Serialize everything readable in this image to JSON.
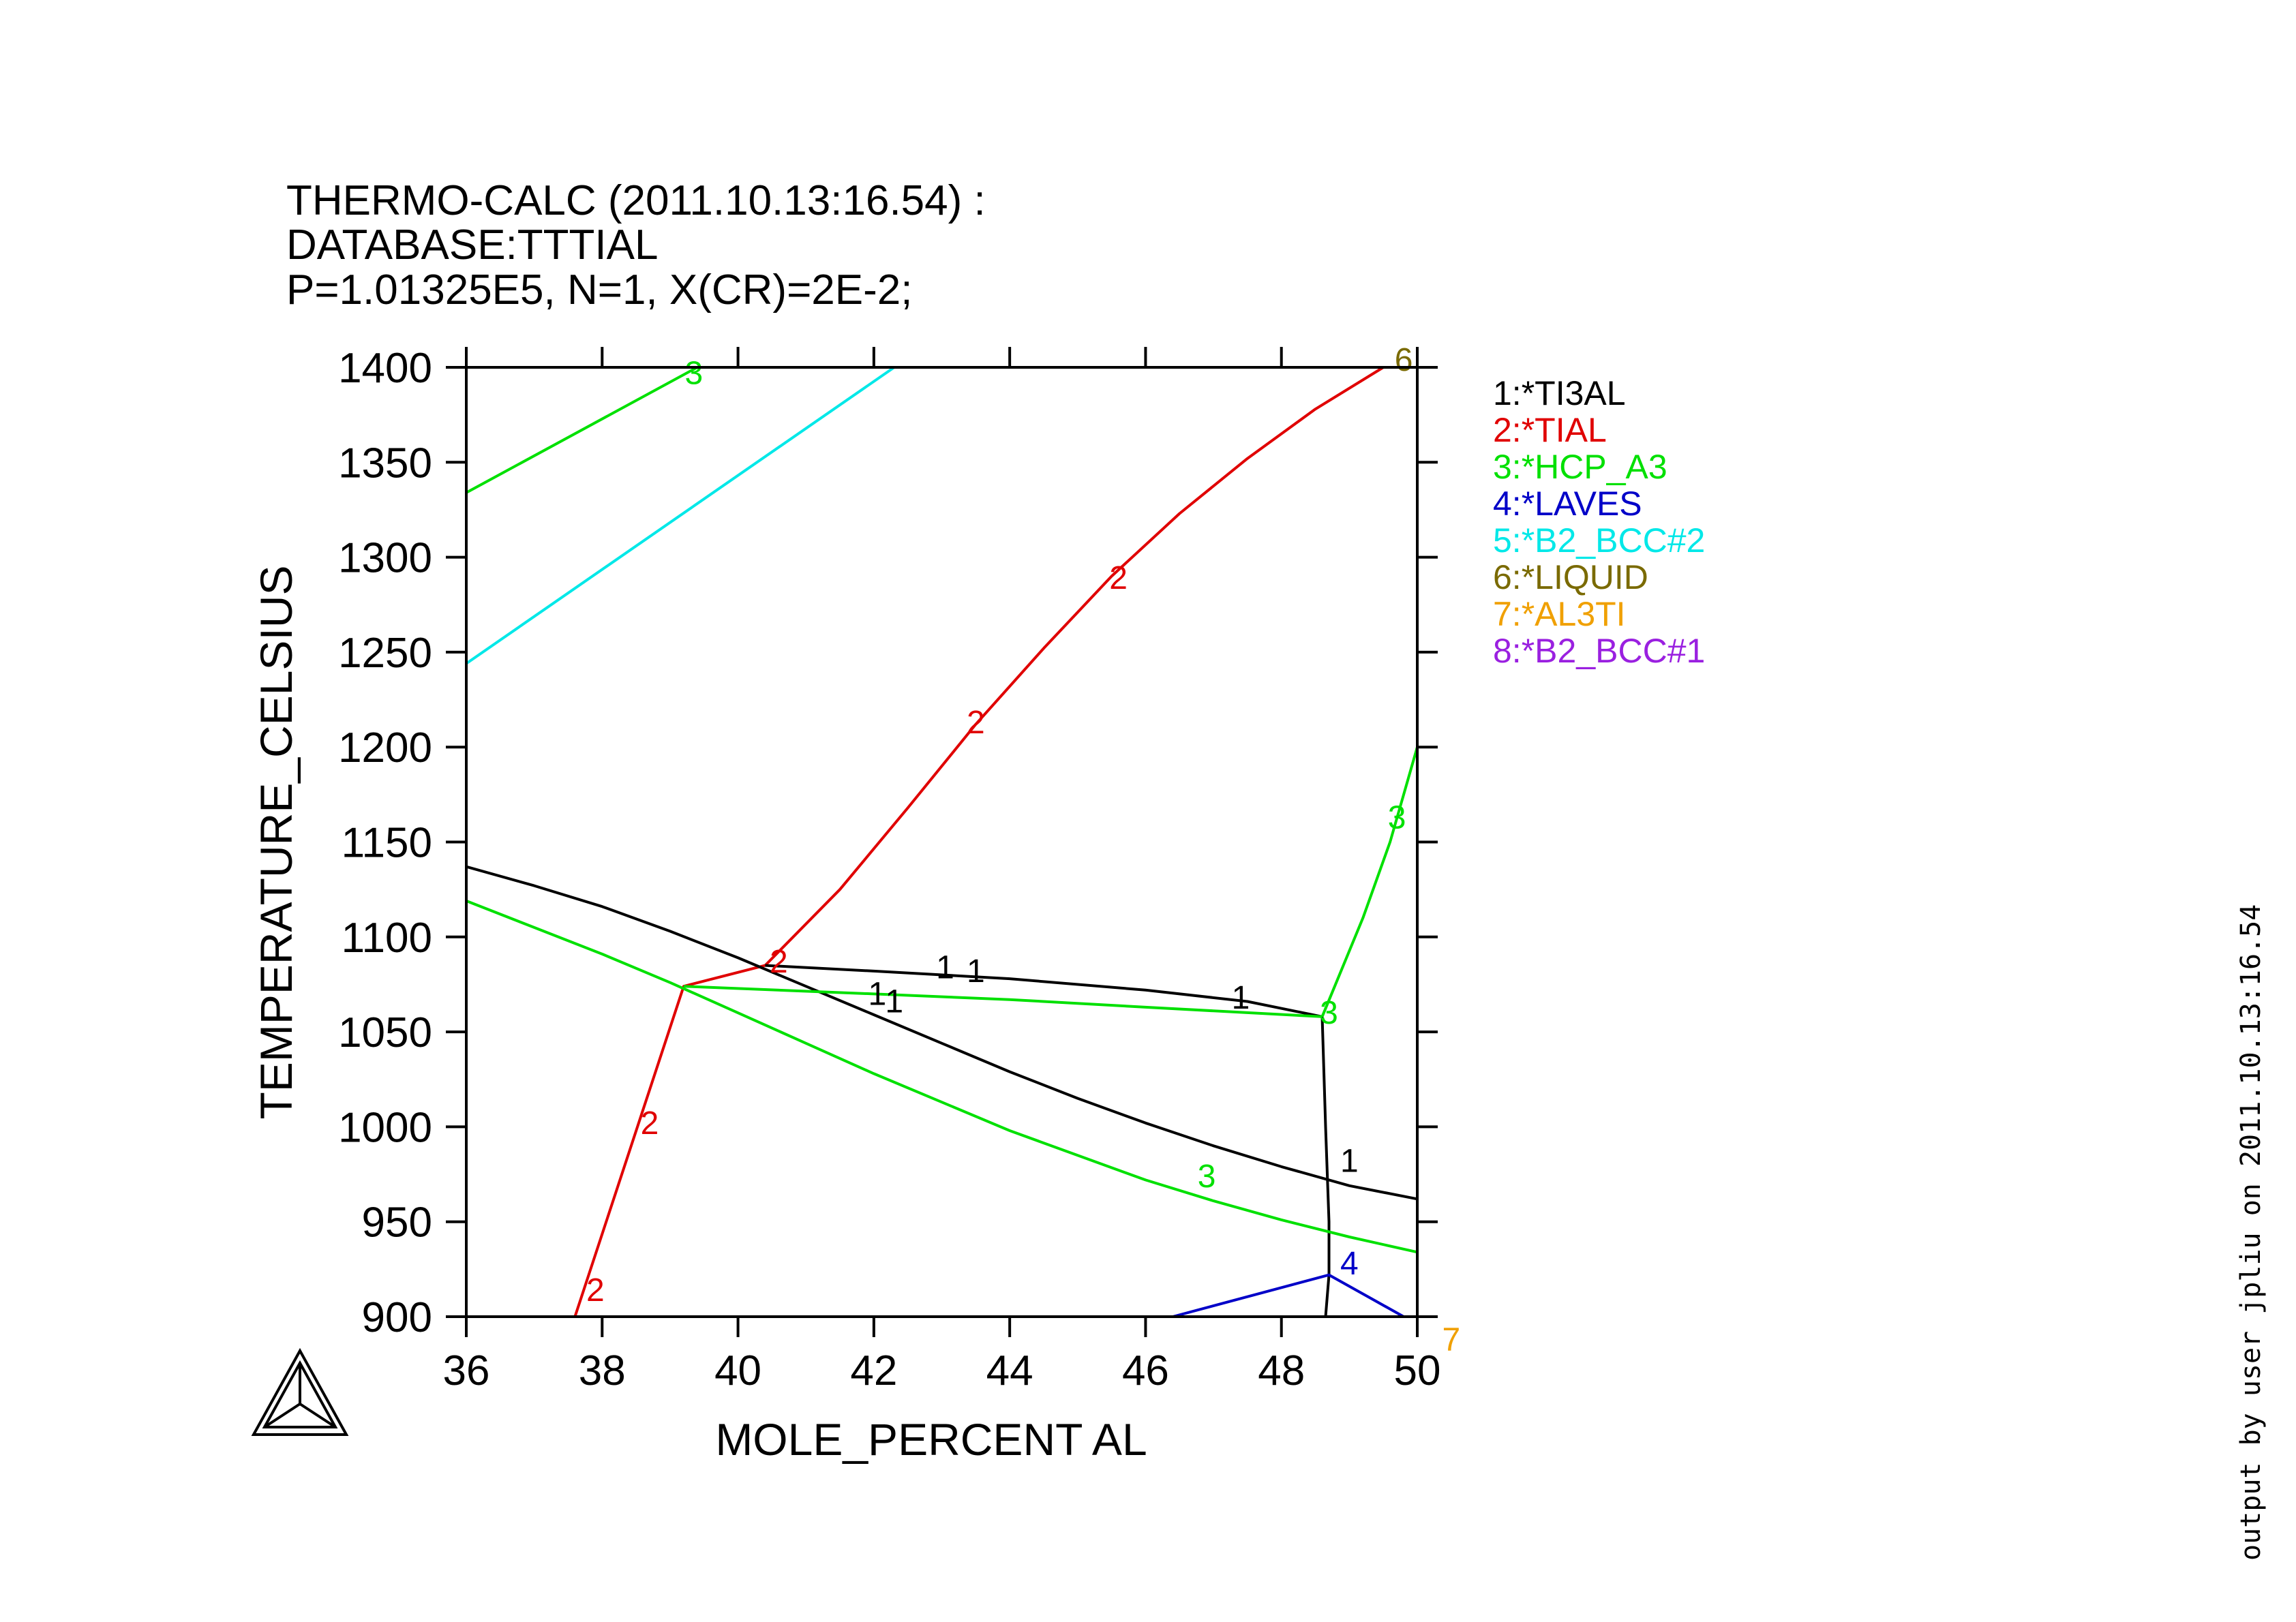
{
  "header": {
    "line1": "THERMO-CALC (2011.10.13:16.54) :",
    "line2": "DATABASE:TTTIAL",
    "line3": "P=1.01325E5, N=1, X(CR)=2E-2;"
  },
  "side_note": "output by user jpliu   on 2011.10.13:16.54",
  "colors": {
    "axis": "#000000",
    "TI3AL": "#000000",
    "TIAL": "#e00000",
    "HCP_A3": "#00e000",
    "LAVES": "#0000c8",
    "B2_BCC2": "#00e8e8",
    "LIQUID": "#7a6a00",
    "AL3TI": "#f0a000",
    "B2_BCC1": "#9a20e0"
  },
  "logo_icon": "thermo-calc-triangle-logo-icon",
  "chart_data": {
    "type": "line",
    "xlabel": "MOLE_PERCENT AL",
    "ylabel": "TEMPERATURE_CELSIUS",
    "xlim": [
      36,
      50
    ],
    "ylim": [
      900,
      1400
    ],
    "xticks": [
      36,
      38,
      40,
      42,
      44,
      46,
      48,
      50
    ],
    "yticks": [
      900,
      950,
      1000,
      1050,
      1100,
      1150,
      1200,
      1250,
      1300,
      1350,
      1400
    ],
    "grid": false,
    "legend_position": "right",
    "legend": [
      {
        "label": "1:*TI3AL",
        "color_key": "TI3AL"
      },
      {
        "label": "2:*TIAL",
        "color_key": "TIAL"
      },
      {
        "label": "3:*HCP_A3",
        "color_key": "HCP_A3"
      },
      {
        "label": "4:*LAVES",
        "color_key": "LAVES"
      },
      {
        "label": "5:*B2_BCC#2",
        "color_key": "B2_BCC2"
      },
      {
        "label": "6:*LIQUID",
        "color_key": "LIQUID"
      },
      {
        "label": "7:*AL3TI",
        "color_key": "AL3TI"
      },
      {
        "label": "8:*B2_BCC#1",
        "color_key": "B2_BCC1"
      }
    ],
    "series": [
      {
        "color_key": "HCP_A3",
        "points": [
          [
            36,
            1334
          ],
          [
            39.4,
            1400
          ]
        ]
      },
      {
        "color_key": "B2_BCC2",
        "points": [
          [
            36,
            1244
          ],
          [
            42.3,
            1400
          ]
        ]
      },
      {
        "color_key": "TIAL",
        "points": [
          [
            40.4,
            1085
          ],
          [
            41.5,
            1125
          ],
          [
            42.5,
            1168
          ],
          [
            43.5,
            1212
          ],
          [
            44.5,
            1252
          ],
          [
            45.5,
            1290
          ],
          [
            46.5,
            1323
          ],
          [
            47.5,
            1352
          ],
          [
            48.5,
            1378
          ],
          [
            49.5,
            1400
          ]
        ]
      },
      {
        "color_key": "TIAL",
        "points": [
          [
            37.6,
            900
          ],
          [
            39.2,
            1074
          ],
          [
            40.4,
            1085
          ]
        ]
      },
      {
        "color_key": "TI3AL",
        "points": [
          [
            36,
            1137
          ],
          [
            37,
            1127
          ],
          [
            38,
            1116
          ],
          [
            39,
            1103
          ],
          [
            40,
            1089
          ],
          [
            41,
            1074
          ],
          [
            42,
            1059
          ],
          [
            43,
            1044
          ],
          [
            44,
            1029
          ],
          [
            45,
            1015
          ],
          [
            46,
            1002
          ],
          [
            47,
            990
          ],
          [
            48,
            979
          ],
          [
            49,
            969
          ],
          [
            50,
            962
          ]
        ]
      },
      {
        "color_key": "TI3AL",
        "points": [
          [
            40.4,
            1085
          ],
          [
            42,
            1082
          ],
          [
            44,
            1078
          ],
          [
            46,
            1072
          ],
          [
            47.5,
            1066
          ],
          [
            48.6,
            1058
          ]
        ]
      },
      {
        "color_key": "TI3AL",
        "points": [
          [
            48.6,
            1058
          ],
          [
            48.65,
            1000
          ],
          [
            48.7,
            950
          ],
          [
            48.7,
            922
          ],
          [
            48.65,
            900
          ]
        ]
      },
      {
        "color_key": "HCP_A3",
        "points": [
          [
            36,
            1119
          ],
          [
            37,
            1105
          ],
          [
            38,
            1091
          ],
          [
            39,
            1076
          ],
          [
            40,
            1060
          ],
          [
            41,
            1044
          ],
          [
            42,
            1028
          ],
          [
            43,
            1013
          ],
          [
            44,
            998
          ],
          [
            45,
            985
          ],
          [
            46,
            972
          ],
          [
            47,
            961
          ],
          [
            48,
            951
          ],
          [
            49,
            942
          ],
          [
            50,
            934
          ]
        ]
      },
      {
        "color_key": "HCP_A3",
        "points": [
          [
            39.2,
            1074
          ],
          [
            42,
            1070
          ],
          [
            44,
            1067
          ],
          [
            46,
            1063
          ],
          [
            48.6,
            1058
          ]
        ]
      },
      {
        "color_key": "HCP_A3",
        "points": [
          [
            48.6,
            1058
          ],
          [
            49.2,
            1110
          ],
          [
            49.6,
            1150
          ],
          [
            50,
            1200
          ]
        ]
      },
      {
        "color_key": "LAVES",
        "points": [
          [
            46.4,
            900
          ],
          [
            48.7,
            922
          ],
          [
            49.8,
            900
          ]
        ]
      }
    ],
    "annotations": [
      {
        "text": "3",
        "x": 39.35,
        "y": 1397,
        "color_key": "HCP_A3"
      },
      {
        "text": "6",
        "x": 49.8,
        "y": 1404,
        "color_key": "LIQUID"
      },
      {
        "text": "2",
        "x": 45.6,
        "y": 1289,
        "color_key": "TIAL"
      },
      {
        "text": "2",
        "x": 43.5,
        "y": 1213,
        "color_key": "TIAL"
      },
      {
        "text": "2",
        "x": 40.6,
        "y": 1087,
        "color_key": "TIAL"
      },
      {
        "text": "2",
        "x": 38.7,
        "y": 1002,
        "color_key": "TIAL"
      },
      {
        "text": "2",
        "x": 37.9,
        "y": 914,
        "color_key": "TIAL"
      },
      {
        "text": "1",
        "x": 43.05,
        "y": 1084,
        "color_key": "TI3AL"
      },
      {
        "text": "1",
        "x": 43.5,
        "y": 1082,
        "color_key": "TI3AL"
      },
      {
        "text": "1",
        "x": 42.05,
        "y": 1070,
        "color_key": "TI3AL"
      },
      {
        "text": "1",
        "x": 42.3,
        "y": 1066,
        "color_key": "TI3AL"
      },
      {
        "text": "1",
        "x": 47.4,
        "y": 1068,
        "color_key": "TI3AL"
      },
      {
        "text": "1",
        "x": 49.0,
        "y": 982,
        "color_key": "TI3AL"
      },
      {
        "text": "3",
        "x": 48.7,
        "y": 1060,
        "color_key": "HCP_A3"
      },
      {
        "text": "3",
        "x": 49.7,
        "y": 1163,
        "color_key": "HCP_A3"
      },
      {
        "text": "3",
        "x": 46.9,
        "y": 974,
        "color_key": "HCP_A3"
      },
      {
        "text": "4",
        "x": 49.0,
        "y": 928,
        "color_key": "LAVES"
      },
      {
        "text": "7",
        "x": 50.5,
        "y": 888,
        "color_key": "AL3TI"
      }
    ]
  }
}
